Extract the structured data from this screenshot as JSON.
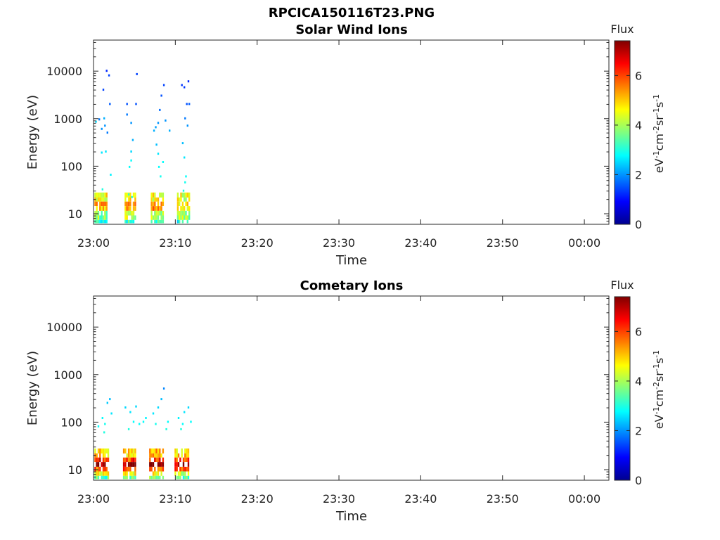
{
  "figure_title": "RPCICA150116T23.PNG",
  "colors": {
    "axis": "#262626",
    "text": "#222222"
  },
  "colorbar": {
    "label": "Flux",
    "unit_parts": [
      {
        "t": "eV",
        "sup": false
      },
      {
        "t": "-1",
        "sup": true
      },
      {
        "t": "cm",
        "sup": false
      },
      {
        "t": "-2",
        "sup": true
      },
      {
        "t": "sr",
        "sup": false
      },
      {
        "t": "-1",
        "sup": true
      },
      {
        "t": "s",
        "sup": false
      },
      {
        "t": "-1",
        "sup": true
      }
    ],
    "range": [
      0,
      7.4
    ],
    "ticks": [
      0,
      2,
      4,
      6
    ],
    "tick_labels": [
      "0",
      "2",
      "4",
      "6"
    ],
    "colormap": "jet"
  },
  "chart_data": [
    {
      "type": "heatmap",
      "title": "Solar Wind Ions",
      "xlabel": "Time",
      "ylabel": "Energy (eV)",
      "x_ticks_min": [
        0,
        10,
        20,
        30,
        40,
        50,
        60
      ],
      "x_tick_labels": [
        "23:00",
        "23:10",
        "23:20",
        "23:30",
        "23:40",
        "23:50",
        "00:00"
      ],
      "xlim_min": [
        0,
        63
      ],
      "y_scale": "log",
      "ylim": [
        6,
        45000
      ],
      "y_ticks": [
        10,
        100,
        1000,
        10000
      ],
      "y_tick_labels": [
        "10",
        "100",
        "1000",
        "10000"
      ],
      "clusters": [
        {
          "start_min": 0.1,
          "end_min": 1.6,
          "low_flux": [
            4.5,
            5.2,
            3.8,
            2.9
          ],
          "points": [
            [
              0.2,
              850,
              2.5
            ],
            [
              0.6,
              950,
              1.8
            ],
            [
              0.9,
              600,
              2.0
            ],
            [
              1.1,
              4000,
              1.4
            ],
            [
              1.3,
              700,
              2.0
            ],
            [
              1.5,
              10000,
              1.2
            ],
            [
              1.6,
              500,
              1.8
            ],
            [
              1.8,
              8000,
              1.4
            ],
            [
              1.9,
              2000,
              1.6
            ],
            [
              1.2,
              1000,
              2.2
            ],
            [
              0.9,
              190,
              2.6
            ],
            [
              1.4,
              200,
              2.6
            ],
            [
              2.0,
              65,
              2.7
            ],
            [
              1.0,
              32,
              3.0
            ]
          ]
        },
        {
          "start_min": 3.8,
          "end_min": 5.2,
          "low_flux": [
            4.8,
            5.5,
            4.2,
            3.1
          ],
          "points": [
            [
              4.0,
              2000,
              1.5
            ],
            [
              4.0,
              1200,
              1.8
            ],
            [
              4.5,
              800,
              2.0
            ],
            [
              5.2,
              8500,
              1.4
            ],
            [
              5.1,
              2000,
              1.5
            ],
            [
              4.7,
              350,
              2.2
            ],
            [
              4.5,
              200,
              2.5
            ],
            [
              4.3,
              95,
              2.8
            ],
            [
              4.5,
              130,
              2.8
            ],
            [
              4.2,
              25,
              3.1
            ],
            [
              4.6,
              22,
              3.0
            ]
          ]
        },
        {
          "start_min": 7.0,
          "end_min": 8.4,
          "low_flux": [
            4.6,
            5.3,
            4.0,
            3.2
          ],
          "points": [
            [
              7.5,
              650,
              2.1
            ],
            [
              7.8,
              800,
              2.0
            ],
            [
              8.2,
              3000,
              1.5
            ],
            [
              8.5,
              5000,
              1.4
            ],
            [
              8.0,
              1500,
              1.7
            ],
            [
              7.3,
              550,
              2.2
            ],
            [
              7.6,
              280,
              2.3
            ],
            [
              7.8,
              180,
              2.6
            ],
            [
              8.4,
              120,
              2.8
            ],
            [
              8.7,
              900,
              2.0
            ],
            [
              9.2,
              550,
              2.2
            ],
            [
              7.9,
              95,
              2.8
            ],
            [
              8.1,
              60,
              2.9
            ]
          ]
        },
        {
          "start_min": 10.2,
          "end_min": 11.6,
          "low_flux": [
            4.4,
            5.0,
            3.9,
            3.0
          ],
          "points": [
            [
              10.7,
              5000,
              1.3
            ],
            [
              11.0,
              4500,
              1.3
            ],
            [
              11.5,
              6000,
              1.2
            ],
            [
              11.3,
              2000,
              1.5
            ],
            [
              11.1,
              1000,
              1.8
            ],
            [
              11.4,
              700,
              2.0
            ],
            [
              10.8,
              300,
              2.3
            ],
            [
              11.0,
              150,
              2.6
            ],
            [
              11.2,
              60,
              2.8
            ],
            [
              11.1,
              45,
              2.9
            ],
            [
              10.9,
              30,
              3.0
            ],
            [
              11.6,
              2000,
              1.6
            ]
          ]
        }
      ]
    },
    {
      "type": "heatmap",
      "title": "Cometary Ions",
      "xlabel": "Time",
      "ylabel": "Energy (eV)",
      "x_ticks_min": [
        0,
        10,
        20,
        30,
        40,
        50,
        60
      ],
      "x_tick_labels": [
        "23:00",
        "23:10",
        "23:20",
        "23:30",
        "23:40",
        "23:50",
        "00:00"
      ],
      "xlim_min": [
        0,
        63
      ],
      "y_scale": "log",
      "ylim": [
        6,
        45000
      ],
      "y_ticks": [
        10,
        100,
        1000,
        10000
      ],
      "y_tick_labels": [
        "10",
        "100",
        "1000",
        "10000"
      ],
      "clusters": [
        {
          "start_min": 0.1,
          "end_min": 1.7,
          "low_flux": [
            5.0,
            6.3,
            7.2,
            5.8,
            4.4,
            3.5
          ],
          "points": [
            [
              0.5,
              80,
              2.8
            ],
            [
              1.0,
              120,
              2.8
            ],
            [
              1.3,
              90,
              2.9
            ],
            [
              1.6,
              250,
              2.4
            ],
            [
              1.9,
              300,
              2.3
            ],
            [
              2.1,
              150,
              2.6
            ],
            [
              1.2,
              60,
              3.0
            ]
          ]
        },
        {
          "start_min": 3.6,
          "end_min": 5.2,
          "low_flux": [
            4.9,
            6.0,
            7.1,
            5.9,
            4.6,
            3.4
          ],
          "points": [
            [
              3.8,
              200,
              2.5
            ],
            [
              4.4,
              160,
              2.6
            ],
            [
              4.8,
              100,
              2.8
            ],
            [
              5.5,
              90,
              2.8
            ],
            [
              6.0,
              100,
              2.8
            ],
            [
              5.1,
              210,
              2.5
            ],
            [
              4.2,
              70,
              3.0
            ],
            [
              6.3,
              120,
              2.7
            ]
          ]
        },
        {
          "start_min": 6.8,
          "end_min": 8.4,
          "low_flux": [
            5.1,
            6.2,
            7.3,
            6.0,
            4.5,
            3.6
          ],
          "points": [
            [
              7.2,
              150,
              2.6
            ],
            [
              7.8,
              200,
              2.5
            ],
            [
              8.5,
              500,
              1.9
            ],
            [
              8.2,
              300,
              2.3
            ],
            [
              7.5,
              90,
              2.9
            ],
            [
              9.0,
              100,
              2.8
            ],
            [
              8.8,
              70,
              3.0
            ]
          ]
        },
        {
          "start_min": 9.9,
          "end_min": 11.5,
          "low_flux": [
            5.0,
            6.1,
            7.0,
            5.8,
            4.4,
            3.3
          ],
          "points": [
            [
              10.3,
              120,
              2.7
            ],
            [
              10.8,
              90,
              2.8
            ],
            [
              11.5,
              200,
              2.5
            ],
            [
              11.8,
              100,
              2.8
            ],
            [
              11.0,
              160,
              2.6
            ],
            [
              10.6,
              70,
              3.0
            ]
          ]
        }
      ]
    }
  ]
}
